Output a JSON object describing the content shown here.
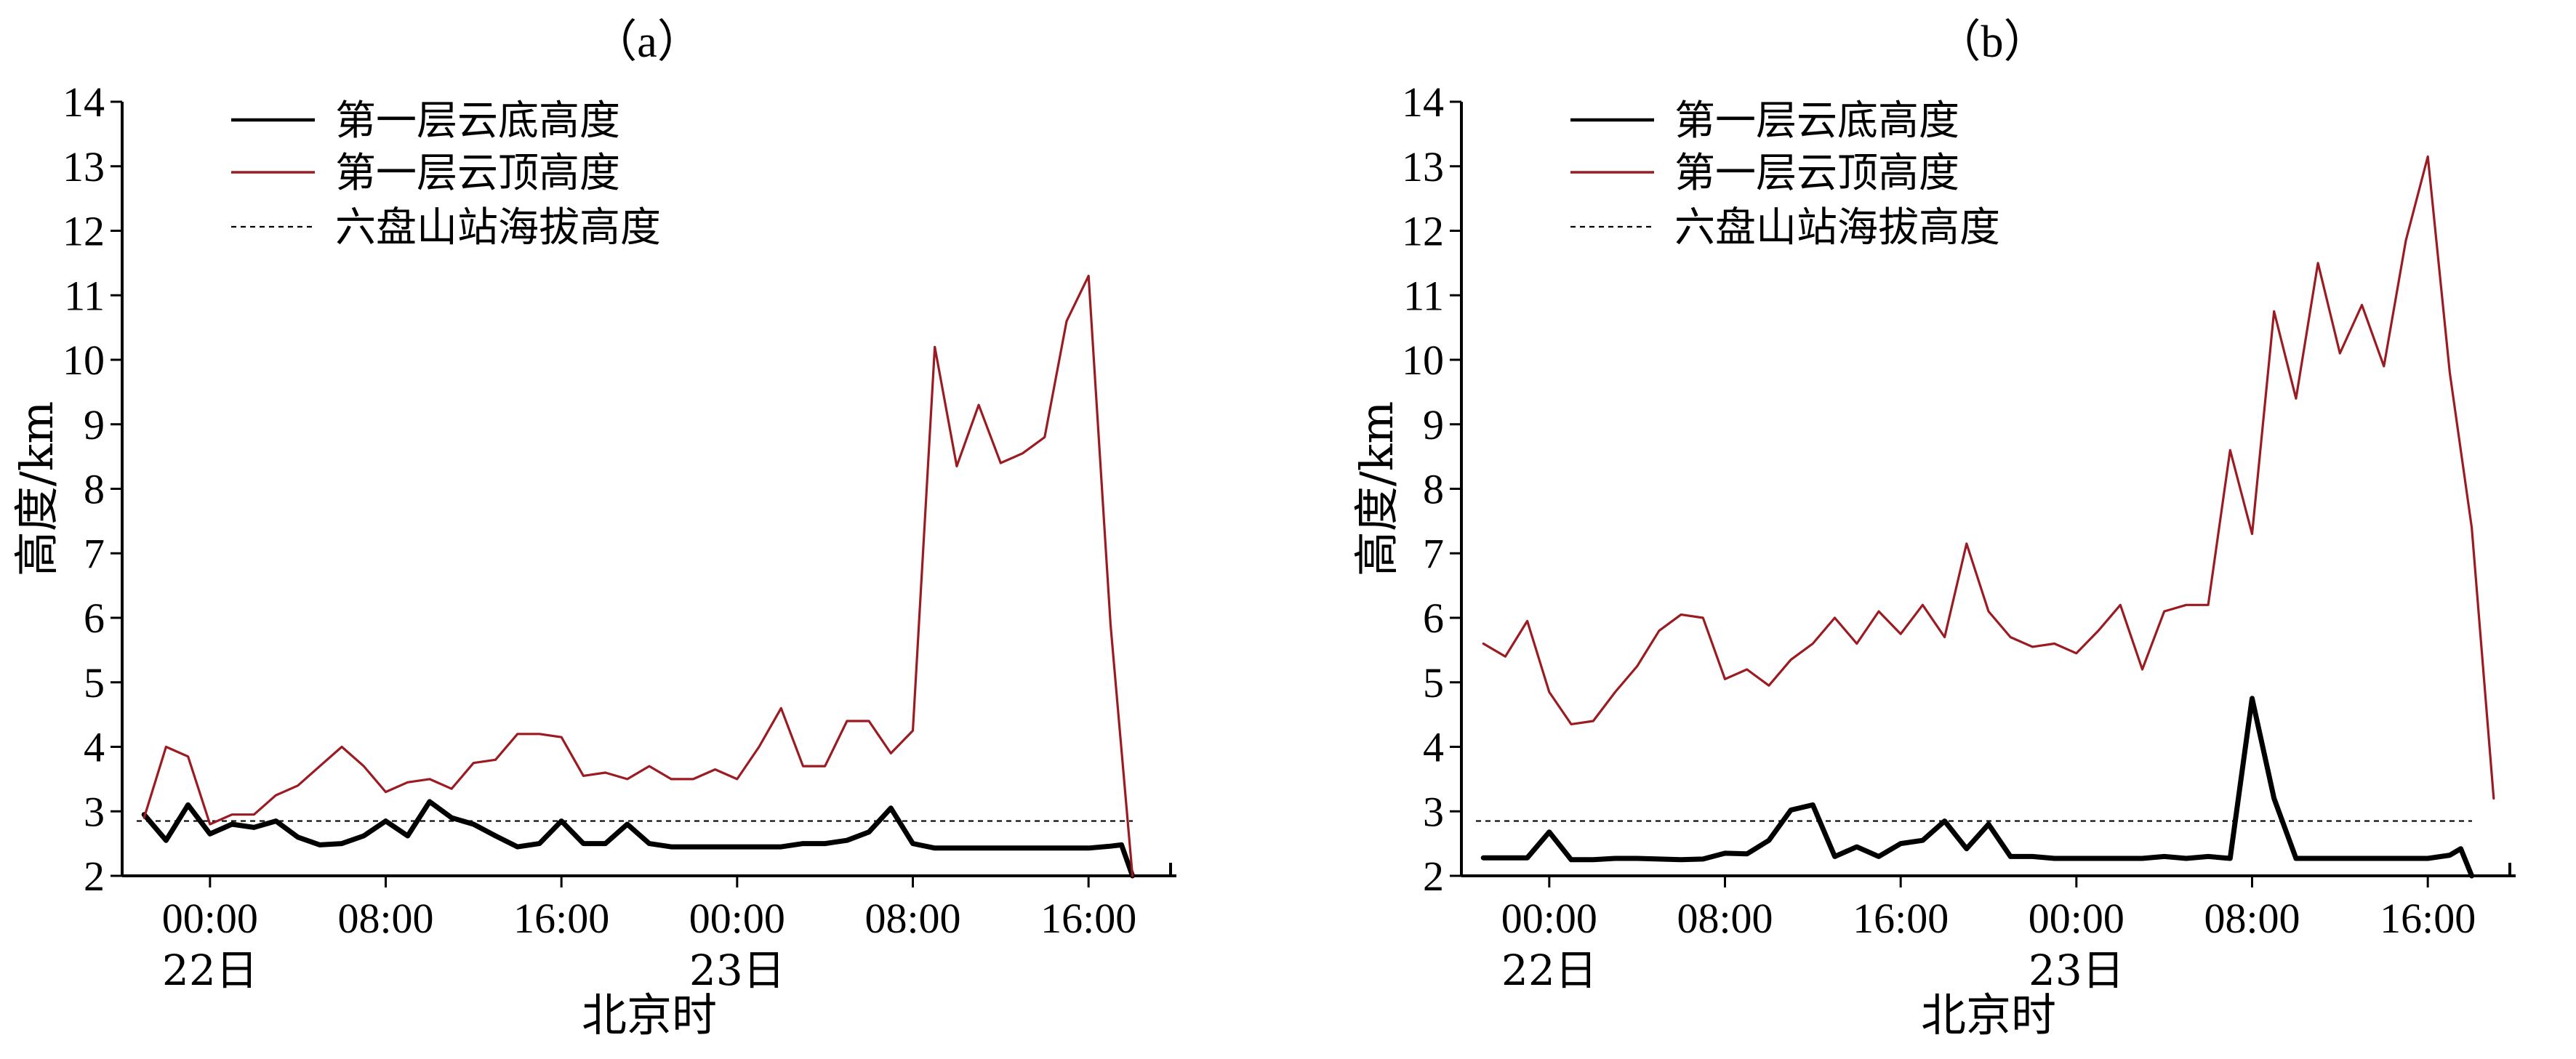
{
  "chart_data": [
    {
      "type": "line",
      "panel_label": "（a）",
      "ylabel": "高度/km",
      "xlabel": "北京时",
      "ylim": [
        2,
        14
      ],
      "yticks": [
        "2",
        "3",
        "4",
        "5",
        "6",
        "7",
        "8",
        "9",
        "10",
        "11",
        "12",
        "13",
        "14"
      ],
      "xlim": [
        0,
        48
      ],
      "xticks": [
        {
          "x": 4,
          "label": "00:00",
          "sublabel": "22日"
        },
        {
          "x": 12,
          "label": "08:00",
          "sublabel": ""
        },
        {
          "x": 20,
          "label": "16:00",
          "sublabel": ""
        },
        {
          "x": 28,
          "label": "00:00",
          "sublabel": "23日"
        },
        {
          "x": 36,
          "label": "08:00",
          "sublabel": ""
        },
        {
          "x": 44,
          "label": "16:00",
          "sublabel": ""
        }
      ],
      "legend": [
        "第一层云底高度",
        "第一层云顶高度",
        "六盘山站海拔高度"
      ],
      "station_altitude": 2.85,
      "series": [
        {
          "name": "第一层云底高度",
          "color": "#000000",
          "x": [
            1,
            2,
            3,
            4,
            5,
            6,
            7,
            8,
            9,
            10,
            11,
            12,
            13,
            14,
            15,
            16,
            17,
            18,
            19,
            20,
            21,
            22,
            23,
            24,
            25,
            26,
            27,
            28,
            29,
            30,
            31,
            32,
            33,
            34,
            35,
            36,
            37,
            38,
            39,
            40,
            41,
            42,
            43,
            44,
            45,
            45.5,
            46
          ],
          "y": [
            2.95,
            2.55,
            3.1,
            2.65,
            2.8,
            2.75,
            2.85,
            2.6,
            2.48,
            2.5,
            2.62,
            2.85,
            2.62,
            3.15,
            2.9,
            2.8,
            2.62,
            2.45,
            2.5,
            2.85,
            2.5,
            2.5,
            2.8,
            2.5,
            2.45,
            2.45,
            2.45,
            2.45,
            2.45,
            2.45,
            2.5,
            2.5,
            2.55,
            2.68,
            3.05,
            2.5,
            2.43,
            2.43,
            2.43,
            2.43,
            2.43,
            2.43,
            2.43,
            2.43,
            2.46,
            2.48,
            2.0
          ]
        },
        {
          "name": "第一层云顶高度",
          "color": "#9b1b22",
          "x": [
            1,
            2,
            3,
            4,
            5,
            6,
            7,
            8,
            9,
            10,
            11,
            12,
            13,
            14,
            15,
            16,
            17,
            18,
            19,
            20,
            21,
            22,
            23,
            24,
            25,
            26,
            27,
            28,
            29,
            30,
            31,
            32,
            33,
            34,
            35,
            36,
            37,
            38,
            39,
            40,
            41,
            42,
            43,
            44,
            45,
            46
          ],
          "y": [
            2.9,
            4.0,
            3.85,
            2.8,
            2.95,
            2.95,
            3.25,
            3.4,
            3.7,
            4.0,
            3.7,
            3.3,
            3.45,
            3.5,
            3.35,
            3.75,
            3.8,
            4.2,
            4.2,
            4.15,
            3.55,
            3.6,
            3.5,
            3.7,
            3.5,
            3.5,
            3.65,
            3.5,
            4.0,
            4.6,
            3.7,
            3.7,
            4.4,
            4.4,
            3.9,
            4.25,
            10.2,
            8.35,
            9.3,
            8.4,
            8.55,
            8.8,
            10.6,
            11.3,
            5.9,
            2.0
          ]
        }
      ]
    },
    {
      "type": "line",
      "panel_label": "（b）",
      "ylabel": "高度/km",
      "xlabel": "北京时",
      "ylim": [
        2,
        14
      ],
      "yticks": [
        "2",
        "3",
        "4",
        "5",
        "6",
        "7",
        "8",
        "9",
        "10",
        "11",
        "12",
        "13",
        "14"
      ],
      "xlim": [
        0,
        48
      ],
      "xticks": [
        {
          "x": 4,
          "label": "00:00",
          "sublabel": "22日"
        },
        {
          "x": 12,
          "label": "08:00",
          "sublabel": ""
        },
        {
          "x": 20,
          "label": "16:00",
          "sublabel": ""
        },
        {
          "x": 28,
          "label": "00:00",
          "sublabel": "23日"
        },
        {
          "x": 36,
          "label": "08:00",
          "sublabel": ""
        },
        {
          "x": 44,
          "label": "16:00",
          "sublabel": ""
        }
      ],
      "legend": [
        "第一层云底高度",
        "第一层云顶高度",
        "六盘山站海拔高度"
      ],
      "station_altitude": 2.85,
      "series": [
        {
          "name": "第一层云底高度",
          "color": "#000000",
          "x": [
            1,
            2,
            3,
            4,
            5,
            6,
            7,
            8,
            9,
            10,
            11,
            12,
            13,
            14,
            15,
            16,
            17,
            18,
            19,
            20,
            21,
            22,
            23,
            24,
            25,
            26,
            27,
            28,
            29,
            30,
            31,
            32,
            33,
            34,
            35,
            36,
            37,
            38,
            39,
            40,
            41,
            42,
            43,
            44,
            45,
            45.5,
            46
          ],
          "y": [
            2.28,
            2.28,
            2.28,
            2.68,
            2.25,
            2.25,
            2.27,
            2.27,
            2.26,
            2.25,
            2.26,
            2.35,
            2.34,
            2.55,
            3.02,
            3.1,
            2.3,
            2.45,
            2.3,
            2.5,
            2.55,
            2.85,
            2.42,
            2.8,
            2.3,
            2.3,
            2.27,
            2.27,
            2.27,
            2.27,
            2.27,
            2.3,
            2.27,
            2.3,
            2.27,
            4.75,
            3.2,
            2.27,
            2.27,
            2.27,
            2.27,
            2.27,
            2.27,
            2.27,
            2.32,
            2.42,
            2.0
          ]
        },
        {
          "name": "第一层云顶高度",
          "color": "#9b1b22",
          "x": [
            1,
            2,
            3,
            4,
            5,
            6,
            7,
            8,
            9,
            10,
            11,
            12,
            13,
            14,
            15,
            16,
            17,
            18,
            19,
            20,
            21,
            22,
            23,
            24,
            25,
            26,
            27,
            28,
            29,
            30,
            31,
            32,
            33,
            34,
            35,
            36,
            37,
            38,
            39,
            40,
            41,
            42,
            43,
            44,
            45,
            46,
            47
          ],
          "y": [
            5.6,
            5.4,
            5.95,
            4.85,
            4.35,
            4.4,
            4.85,
            5.25,
            5.8,
            6.05,
            6.0,
            5.05,
            5.2,
            4.95,
            5.35,
            5.6,
            6.0,
            5.6,
            6.1,
            5.75,
            6.2,
            5.7,
            7.15,
            6.1,
            5.7,
            5.55,
            5.6,
            5.45,
            5.8,
            6.2,
            5.2,
            6.1,
            6.2,
            6.2,
            8.6,
            7.3,
            10.75,
            9.4,
            11.5,
            10.1,
            10.85,
            9.9,
            11.85,
            13.15,
            9.8,
            7.4,
            3.2
          ]
        }
      ]
    }
  ]
}
